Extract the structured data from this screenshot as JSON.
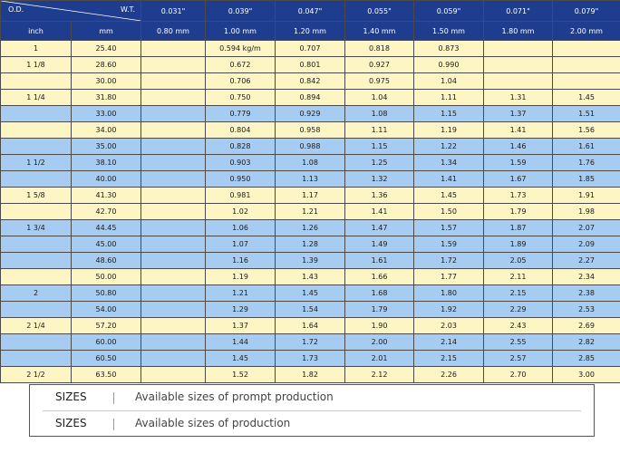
{
  "header": {
    "od_label": "O.D.",
    "wt_label": "W.T.",
    "inch_label": "inch",
    "mm_label": "mm",
    "inch_cols": [
      "0.031\"",
      "0.039\"",
      "0.047\"",
      "0.055\"",
      "0.059\"",
      "0.071\"",
      "0.079\""
    ],
    "mm_cols": [
      "0.80 mm",
      "1.00 mm",
      "1.20 mm",
      "1.40 mm",
      "1.50 mm",
      "1.80 mm",
      "2.00 mm"
    ]
  },
  "rows": [
    {
      "inch": "1",
      "mm": "25.40",
      "v": [
        "",
        "0.594 kg/m",
        "0.707",
        "0.818",
        "0.873",
        "",
        ""
      ],
      "color": "yellow"
    },
    {
      "inch": "1 1/8",
      "mm": "28.60",
      "v": [
        "",
        "0.672",
        "0.801",
        "0.927",
        "0.990",
        "",
        ""
      ],
      "color": "yellow"
    },
    {
      "inch": "",
      "mm": "30.00",
      "v": [
        "",
        "0.706",
        "0.842",
        "0.975",
        "1.04",
        "",
        ""
      ],
      "color": "yellow"
    },
    {
      "inch": "1 1/4",
      "mm": "31.80",
      "v": [
        "",
        "0.750",
        "0.894",
        "1.04",
        "1.11",
        "1.31",
        "1.45"
      ],
      "color": "yellow"
    },
    {
      "inch": "",
      "mm": "33.00",
      "v": [
        "",
        "0.779",
        "0.929",
        "1.08",
        "1.15",
        "1.37",
        "1.51"
      ],
      "color": "blue"
    },
    {
      "inch": "",
      "mm": "34.00",
      "v": [
        "",
        "0.804",
        "0.958",
        "1.11",
        "1.19",
        "1.41",
        "1.56"
      ],
      "color": "yellow"
    },
    {
      "inch": "",
      "mm": "35.00",
      "v": [
        "",
        "0.828",
        "0.988",
        "1.15",
        "1.22",
        "1.46",
        "1.61"
      ],
      "color": "blue"
    },
    {
      "inch": "1 1/2",
      "mm": "38.10",
      "v": [
        "",
        "0.903",
        "1.08",
        "1.25",
        "1.34",
        "1.59",
        "1.76"
      ],
      "color": "blue"
    },
    {
      "inch": "",
      "mm": "40.00",
      "v": [
        "",
        "0.950",
        "1.13",
        "1.32",
        "1.41",
        "1.67",
        "1.85"
      ],
      "color": "blue"
    },
    {
      "inch": "1 5/8",
      "mm": "41.30",
      "v": [
        "",
        "0.981",
        "1.17",
        "1.36",
        "1.45",
        "1.73",
        "1.91"
      ],
      "color": "yellow"
    },
    {
      "inch": "",
      "mm": "42.70",
      "v": [
        "",
        "1.02",
        "1.21",
        "1.41",
        "1.50",
        "1.79",
        "1.98"
      ],
      "color": "yellow"
    },
    {
      "inch": "1 3/4",
      "mm": "44.45",
      "v": [
        "",
        "1.06",
        "1.26",
        "1.47",
        "1.57",
        "1.87",
        "2.07"
      ],
      "color": "blue"
    },
    {
      "inch": "",
      "mm": "45.00",
      "v": [
        "",
        "1.07",
        "1.28",
        "1.49",
        "1.59",
        "1.89",
        "2.09"
      ],
      "color": "blue"
    },
    {
      "inch": "",
      "mm": "48.60",
      "v": [
        "",
        "1.16",
        "1.39",
        "1.61",
        "1.72",
        "2.05",
        "2.27"
      ],
      "color": "blue"
    },
    {
      "inch": "",
      "mm": "50.00",
      "v": [
        "",
        "1.19",
        "1.43",
        "1.66",
        "1.77",
        "2.11",
        "2.34"
      ],
      "color": "yellow"
    },
    {
      "inch": "2",
      "mm": "50.80",
      "v": [
        "",
        "1.21",
        "1.45",
        "1.68",
        "1.80",
        "2.15",
        "2.38"
      ],
      "color": "blue"
    },
    {
      "inch": "",
      "mm": "54.00",
      "v": [
        "",
        "1.29",
        "1.54",
        "1.79",
        "1.92",
        "2.29",
        "2.53"
      ],
      "color": "blue"
    },
    {
      "inch": "2 1/4",
      "mm": "57.20",
      "v": [
        "",
        "1.37",
        "1.64",
        "1.90",
        "2.03",
        "2.43",
        "2.69"
      ],
      "color": "yellow"
    },
    {
      "inch": "",
      "mm": "60.00",
      "v": [
        "",
        "1.44",
        "1.72",
        "2.00",
        "2.14",
        "2.55",
        "2.82"
      ],
      "color": "blue"
    },
    {
      "inch": "",
      "mm": "60.50",
      "v": [
        "",
        "1.45",
        "1.73",
        "2.01",
        "2.15",
        "2.57",
        "2.85"
      ],
      "color": "blue"
    },
    {
      "inch": "2 1/2",
      "mm": "63.50",
      "v": [
        "",
        "1.52",
        "1.82",
        "2.12",
        "2.26",
        "2.70",
        "3.00"
      ],
      "color": "yellow"
    }
  ],
  "legend": [
    {
      "code": "SIZES",
      "desc": "Available sizes of prompt  production"
    },
    {
      "code": "SIZES",
      "desc": "Available sizes of production"
    }
  ],
  "colors": {
    "header": "#1f3d8e",
    "yellow": "#fdf6c4",
    "blue": "#a7ccf2"
  }
}
